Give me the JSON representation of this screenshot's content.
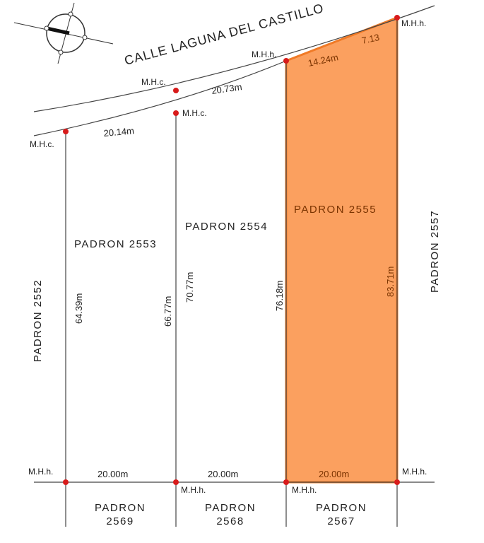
{
  "street": {
    "name": "CALLE LAGUNA DEL CASTILLO"
  },
  "colors": {
    "highlight_fill": "#fba05f",
    "highlight_stroke": "#f07a26",
    "vertex_red": "#d81b1b",
    "line": "#444444"
  },
  "parcels": [
    {
      "label": "PADRON 2553",
      "left_side": "64.39m",
      "frontage": "20.14m",
      "rear": "20.00m"
    },
    {
      "label": "PADRON 2554",
      "left_side": "66.77m",
      "right_side": "70.77m",
      "frontage": "20.73m",
      "rear": "20.00m"
    },
    {
      "label": "PADRON 2555",
      "left_side": "76.18m",
      "right_side": "83.71m",
      "frontage_a": "14.24m",
      "frontage_b": "7.13",
      "rear": "20.00m",
      "highlighted": true
    }
  ],
  "neighbors": {
    "west": "PADRON 2552",
    "east": "PADRON 2557",
    "south": [
      {
        "line1": "PADRON",
        "line2": "2569"
      },
      {
        "line1": "PADRON",
        "line2": "2568"
      },
      {
        "line1": "PADRON",
        "line2": "2567"
      }
    ]
  },
  "markers": {
    "mhc": "M.H.c.",
    "mhh": "M.H.h."
  },
  "compass": {
    "icon": "north-arrow-icon"
  }
}
